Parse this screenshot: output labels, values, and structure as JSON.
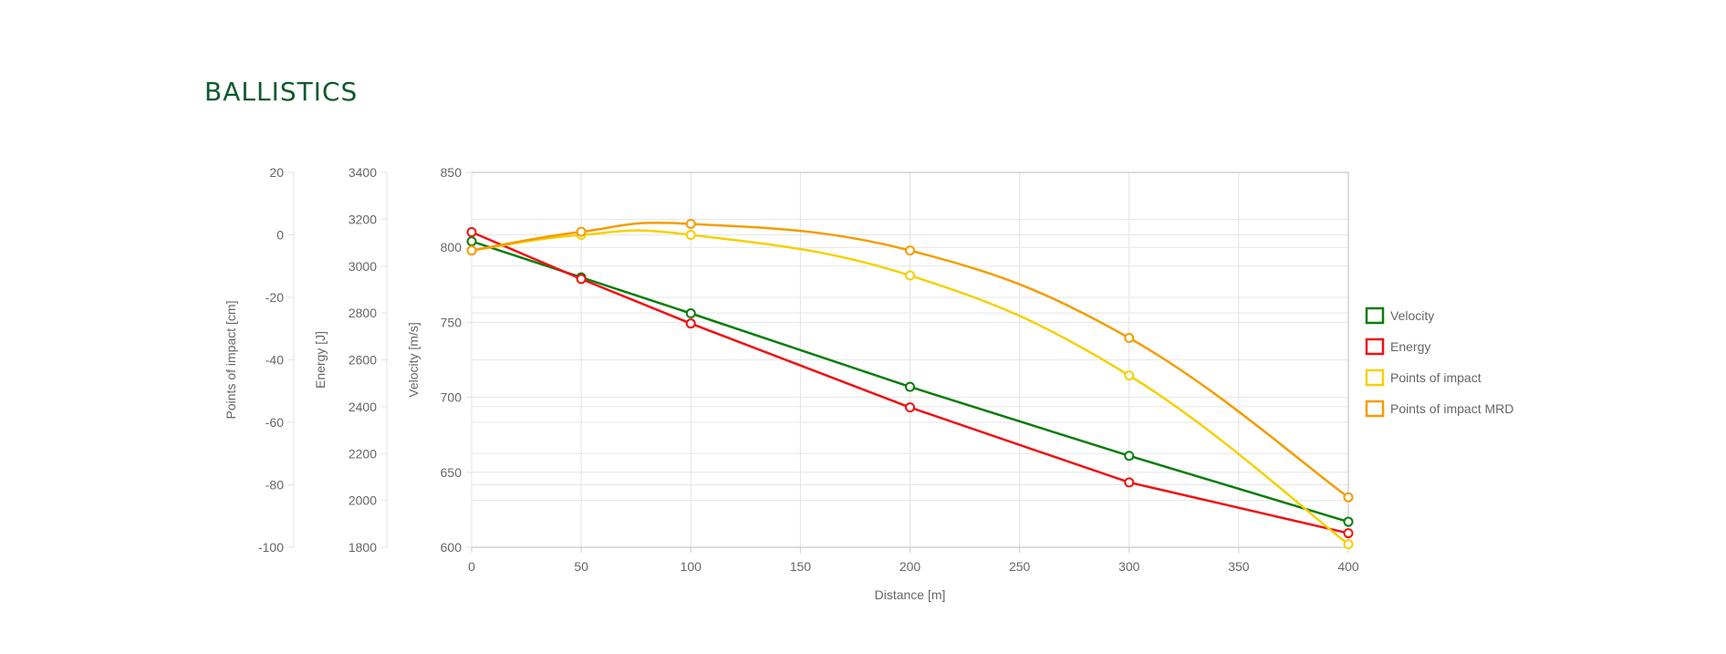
{
  "page": {
    "title": "BALLISTICS"
  },
  "chart_data": {
    "type": "line",
    "x": [
      0,
      50,
      100,
      200,
      300,
      400
    ],
    "xlabel": "Distance [m]",
    "xlim": [
      0,
      400
    ],
    "x_ticks": [
      0,
      50,
      100,
      150,
      200,
      250,
      300,
      350,
      400
    ],
    "legend_position": "right",
    "grid": true,
    "axes": [
      {
        "id": "poi",
        "label": "Points of impact [cm]",
        "range": [
          -100,
          20
        ],
        "ticks": [
          20,
          0,
          -20,
          -40,
          -60,
          -80,
          -100
        ]
      },
      {
        "id": "energy",
        "label": "Energy [J]",
        "range": [
          1800,
          3400
        ],
        "ticks": [
          3400,
          3200,
          3000,
          2800,
          2600,
          2400,
          2200,
          2000,
          1800
        ]
      },
      {
        "id": "velocity",
        "label": "Velocity [m/s]",
        "range": [
          600,
          850
        ],
        "ticks": [
          850,
          800,
          750,
          700,
          650,
          600
        ]
      }
    ],
    "series": [
      {
        "name": "Velocity",
        "axis": "velocity",
        "color": "#0a7d0a",
        "smooth": false,
        "values": [
          804,
          780,
          756,
          707,
          661,
          617
        ]
      },
      {
        "name": "Energy",
        "axis": "energy",
        "color": "#ee1111",
        "smooth": false,
        "values": [
          3145,
          2945,
          2755,
          2397,
          2077,
          1860
        ]
      },
      {
        "name": "Points of impact",
        "axis": "poi",
        "color": "#f5d000",
        "smooth": true,
        "values": [
          -5,
          0,
          0,
          -13,
          -45,
          -99
        ]
      },
      {
        "name": "Points of impact MRD",
        "axis": "poi",
        "color": "#f59c00",
        "smooth": true,
        "values": [
          -5,
          1,
          3.5,
          -5,
          -33,
          -84
        ]
      }
    ]
  }
}
